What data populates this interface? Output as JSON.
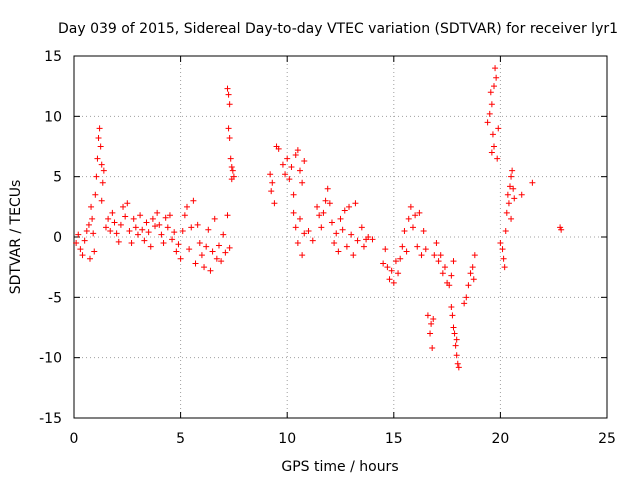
{
  "chart_data": {
    "type": "scatter",
    "title": "Day 039 of 2015, Sidereal Day-to-day VTEC variation (SDTVAR) for receiver lyr1",
    "xlabel": "GPS time / hours",
    "ylabel": "SDTVAR / TECUs",
    "xlim": [
      0,
      25
    ],
    "ylim": [
      -15,
      15
    ],
    "x_ticks": [
      0,
      5,
      10,
      15,
      20,
      25
    ],
    "y_ticks": [
      -15,
      -10,
      -5,
      0,
      5,
      10,
      15
    ],
    "x_tick_labels": [
      "0",
      "5",
      "10",
      "15",
      "20",
      "25"
    ],
    "y_tick_labels": [
      "-15",
      "-10",
      "-5",
      "0",
      "5",
      "10",
      "15"
    ],
    "grid": true,
    "marker": "+",
    "color": "#ff0000",
    "series": [
      {
        "name": "SDTVAR",
        "points": [
          [
            0.1,
            -0.5
          ],
          [
            0.2,
            0.2
          ],
          [
            0.3,
            -1.0
          ],
          [
            0.4,
            -1.5
          ],
          [
            0.5,
            -0.3
          ],
          [
            0.6,
            0.5
          ],
          [
            0.7,
            1.0
          ],
          [
            0.75,
            -1.8
          ],
          [
            0.8,
            2.5
          ],
          [
            0.85,
            1.5
          ],
          [
            0.9,
            0.3
          ],
          [
            0.95,
            -1.2
          ],
          [
            1.0,
            3.5
          ],
          [
            1.05,
            5.0
          ],
          [
            1.1,
            6.5
          ],
          [
            1.15,
            8.2
          ],
          [
            1.2,
            9.0
          ],
          [
            1.25,
            7.5
          ],
          [
            1.3,
            6.0
          ],
          [
            1.35,
            4.5
          ],
          [
            1.4,
            5.5
          ],
          [
            1.3,
            3.0
          ],
          [
            1.5,
            0.8
          ],
          [
            1.6,
            1.5
          ],
          [
            1.7,
            0.5
          ],
          [
            1.8,
            2.0
          ],
          [
            1.9,
            1.2
          ],
          [
            2.0,
            0.3
          ],
          [
            2.1,
            -0.4
          ],
          [
            2.2,
            1.0
          ],
          [
            2.3,
            2.5
          ],
          [
            2.4,
            1.7
          ],
          [
            2.5,
            2.8
          ],
          [
            2.6,
            0.5
          ],
          [
            2.7,
            -0.5
          ],
          [
            2.8,
            1.5
          ],
          [
            2.9,
            0.8
          ],
          [
            3.0,
            0.2
          ],
          [
            3.1,
            1.8
          ],
          [
            3.2,
            0.6
          ],
          [
            3.3,
            -0.3
          ],
          [
            3.4,
            1.2
          ],
          [
            3.5,
            0.4
          ],
          [
            3.6,
            -0.8
          ],
          [
            3.7,
            1.5
          ],
          [
            3.8,
            0.9
          ],
          [
            3.9,
            2.0
          ],
          [
            4.0,
            1.0
          ],
          [
            4.1,
            0.2
          ],
          [
            4.2,
            -0.5
          ],
          [
            4.3,
            1.6
          ],
          [
            4.4,
            0.8
          ],
          [
            4.5,
            1.8
          ],
          [
            4.6,
            -0.2
          ],
          [
            4.7,
            0.4
          ],
          [
            4.8,
            -1.2
          ],
          [
            4.9,
            -0.6
          ],
          [
            5.0,
            -1.8
          ],
          [
            5.1,
            0.5
          ],
          [
            5.2,
            1.8
          ],
          [
            5.3,
            2.5
          ],
          [
            5.4,
            -1.0
          ],
          [
            5.5,
            0.8
          ],
          [
            5.6,
            3.0
          ],
          [
            5.7,
            -2.2
          ],
          [
            5.8,
            1.0
          ],
          [
            5.9,
            -0.5
          ],
          [
            6.0,
            -1.5
          ],
          [
            6.1,
            -2.5
          ],
          [
            6.2,
            -0.8
          ],
          [
            6.3,
            0.6
          ],
          [
            6.4,
            -2.8
          ],
          [
            6.5,
            -1.2
          ],
          [
            6.6,
            1.5
          ],
          [
            6.7,
            -1.8
          ],
          [
            6.8,
            -0.7
          ],
          [
            6.9,
            -2.0
          ],
          [
            7.0,
            0.2
          ],
          [
            7.1,
            -1.3
          ],
          [
            7.2,
            1.8
          ],
          [
            7.3,
            -0.9
          ],
          [
            7.2,
            12.3
          ],
          [
            7.25,
            11.8
          ],
          [
            7.3,
            11.0
          ],
          [
            7.25,
            9.0
          ],
          [
            7.3,
            8.2
          ],
          [
            7.35,
            6.5
          ],
          [
            7.4,
            5.8
          ],
          [
            7.45,
            5.5
          ],
          [
            7.5,
            5.0
          ],
          [
            7.4,
            4.8
          ],
          [
            9.2,
            5.2
          ],
          [
            9.3,
            4.5
          ],
          [
            9.25,
            3.8
          ],
          [
            9.4,
            2.8
          ],
          [
            9.5,
            7.5
          ],
          [
            9.6,
            7.3
          ],
          [
            9.8,
            6.0
          ],
          [
            9.9,
            5.2
          ],
          [
            10.0,
            6.5
          ],
          [
            10.1,
            4.8
          ],
          [
            10.2,
            5.8
          ],
          [
            10.3,
            3.5
          ],
          [
            10.4,
            6.8
          ],
          [
            10.5,
            7.2
          ],
          [
            10.6,
            5.5
          ],
          [
            10.7,
            4.5
          ],
          [
            10.8,
            6.3
          ],
          [
            10.3,
            2.0
          ],
          [
            10.4,
            0.8
          ],
          [
            10.5,
            -0.5
          ],
          [
            10.6,
            1.5
          ],
          [
            10.7,
            -1.5
          ],
          [
            10.8,
            0.3
          ],
          [
            11.0,
            0.5
          ],
          [
            11.2,
            -0.3
          ],
          [
            11.4,
            2.5
          ],
          [
            11.5,
            1.8
          ],
          [
            11.6,
            0.8
          ],
          [
            11.7,
            2.0
          ],
          [
            11.8,
            3.0
          ],
          [
            11.9,
            4.0
          ],
          [
            12.0,
            2.8
          ],
          [
            12.1,
            1.2
          ],
          [
            12.2,
            -0.5
          ],
          [
            12.3,
            0.3
          ],
          [
            12.4,
            -1.2
          ],
          [
            12.5,
            1.5
          ],
          [
            12.6,
            0.6
          ],
          [
            12.7,
            2.2
          ],
          [
            12.8,
            -0.8
          ],
          [
            12.9,
            2.5
          ],
          [
            13.0,
            0.2
          ],
          [
            13.1,
            -1.5
          ],
          [
            13.2,
            2.8
          ],
          [
            13.3,
            -0.3
          ],
          [
            13.5,
            0.8
          ],
          [
            13.6,
            -0.8
          ],
          [
            13.7,
            -0.2
          ],
          [
            13.8,
            0.0
          ],
          [
            14.0,
            -0.2
          ],
          [
            14.5,
            -2.2
          ],
          [
            14.6,
            -1.0
          ],
          [
            14.7,
            -2.5
          ],
          [
            14.8,
            -3.5
          ],
          [
            14.9,
            -2.8
          ],
          [
            15.0,
            -3.8
          ],
          [
            15.1,
            -2.0
          ],
          [
            15.2,
            -3.0
          ],
          [
            15.3,
            -1.8
          ],
          [
            15.4,
            -0.8
          ],
          [
            15.5,
            0.5
          ],
          [
            15.6,
            -1.2
          ],
          [
            15.7,
            1.5
          ],
          [
            15.8,
            2.5
          ],
          [
            15.9,
            0.8
          ],
          [
            16.0,
            1.8
          ],
          [
            16.1,
            -0.8
          ],
          [
            16.2,
            2.0
          ],
          [
            16.3,
            -1.5
          ],
          [
            16.4,
            0.5
          ],
          [
            16.5,
            -1.0
          ],
          [
            16.6,
            -6.5
          ],
          [
            16.7,
            -8.0
          ],
          [
            16.8,
            -9.2
          ],
          [
            16.75,
            -7.2
          ],
          [
            16.85,
            -6.8
          ],
          [
            16.9,
            -1.5
          ],
          [
            17.0,
            -0.5
          ],
          [
            17.1,
            -2.0
          ],
          [
            17.2,
            -1.5
          ],
          [
            17.3,
            -3.0
          ],
          [
            17.4,
            -2.5
          ],
          [
            17.5,
            -3.8
          ],
          [
            17.6,
            -4.0
          ],
          [
            17.7,
            -3.2
          ],
          [
            17.8,
            -2.0
          ],
          [
            17.7,
            -5.8
          ],
          [
            17.75,
            -6.5
          ],
          [
            17.8,
            -7.5
          ],
          [
            17.85,
            -8.0
          ],
          [
            17.9,
            -9.0
          ],
          [
            17.95,
            -9.8
          ],
          [
            18.0,
            -10.5
          ],
          [
            18.05,
            -10.8
          ],
          [
            17.95,
            -8.5
          ],
          [
            18.3,
            -5.5
          ],
          [
            18.4,
            -5.0
          ],
          [
            18.5,
            -4.0
          ],
          [
            18.6,
            -3.0
          ],
          [
            18.7,
            -2.5
          ],
          [
            18.8,
            -1.5
          ],
          [
            18.75,
            -3.5
          ],
          [
            19.4,
            9.5
          ],
          [
            19.5,
            10.2
          ],
          [
            19.55,
            12.0
          ],
          [
            19.6,
            11.0
          ],
          [
            19.65,
            8.5
          ],
          [
            19.7,
            7.5
          ],
          [
            19.75,
            14.0
          ],
          [
            19.8,
            13.2
          ],
          [
            19.85,
            6.5
          ],
          [
            19.9,
            9.0
          ],
          [
            19.6,
            7.0
          ],
          [
            19.7,
            12.5
          ],
          [
            20.0,
            -0.5
          ],
          [
            20.1,
            -1.0
          ],
          [
            20.2,
            -2.5
          ],
          [
            20.15,
            -1.8
          ],
          [
            20.25,
            0.5
          ],
          [
            20.3,
            2.0
          ],
          [
            20.35,
            3.5
          ],
          [
            20.4,
            2.8
          ],
          [
            20.45,
            4.2
          ],
          [
            20.5,
            5.0
          ],
          [
            20.55,
            5.5
          ],
          [
            20.6,
            4.0
          ],
          [
            20.65,
            3.2
          ],
          [
            20.5,
            1.5
          ],
          [
            21.0,
            3.5
          ],
          [
            21.5,
            4.5
          ],
          [
            22.8,
            0.8
          ],
          [
            22.85,
            0.6
          ]
        ]
      }
    ]
  }
}
